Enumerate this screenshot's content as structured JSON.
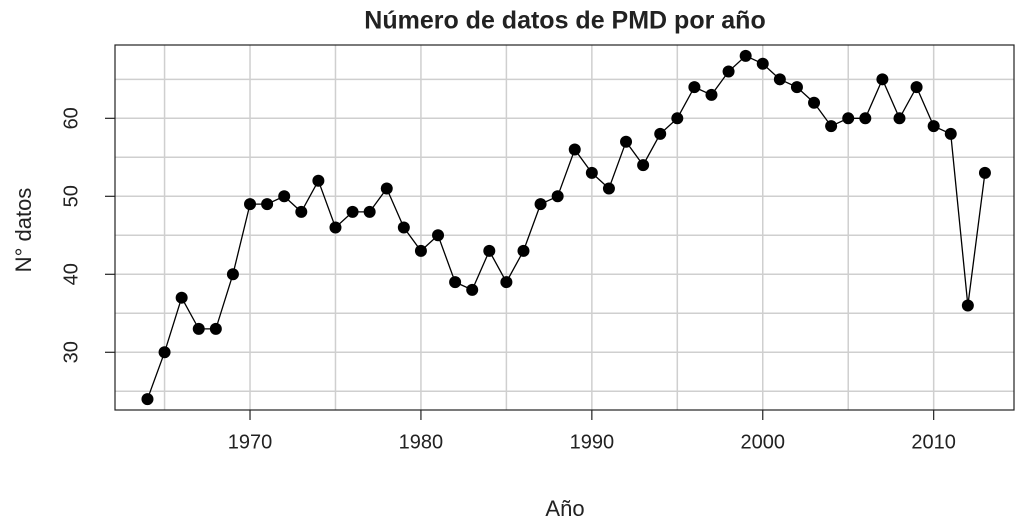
{
  "chart_data": {
    "type": "line",
    "title": "Número de datos de PMD por año",
    "xlabel": "Año",
    "ylabel": "N° datos",
    "x": [
      1964,
      1965,
      1966,
      1967,
      1968,
      1969,
      1970,
      1971,
      1972,
      1973,
      1974,
      1975,
      1976,
      1977,
      1978,
      1979,
      1980,
      1981,
      1982,
      1983,
      1984,
      1985,
      1986,
      1987,
      1988,
      1989,
      1990,
      1991,
      1992,
      1993,
      1994,
      1995,
      1996,
      1997,
      1998,
      1999,
      2000,
      2001,
      2002,
      2003,
      2004,
      2005,
      2006,
      2007,
      2008,
      2009,
      2010,
      2011,
      2012,
      2013
    ],
    "series": [
      {
        "name": "N° datos",
        "color": "#000000",
        "values": [
          24,
          30,
          37,
          33,
          33,
          40,
          49,
          49,
          50,
          48,
          52,
          46,
          48,
          48,
          51,
          46,
          43,
          45,
          39,
          38,
          43,
          39,
          43,
          49,
          50,
          56,
          53,
          51,
          57,
          54,
          58,
          60,
          64,
          63,
          66,
          68,
          67,
          65,
          64,
          62,
          59,
          60,
          60,
          65,
          60,
          64,
          59,
          58,
          36,
          53
        ]
      }
    ],
    "xlim": [
      1962.1,
      2014.7
    ],
    "ylim": [
      22.6,
      69.4
    ],
    "xticks": [
      1970,
      1980,
      1990,
      2000,
      2010
    ],
    "yticks": [
      30,
      40,
      50,
      60
    ],
    "xgrid": [
      1965,
      1970,
      1975,
      1980,
      1985,
      1990,
      1995,
      2000,
      2005,
      2010
    ],
    "ygrid": [
      25,
      30,
      35,
      40,
      45,
      50,
      55,
      60,
      65
    ],
    "grid": true
  }
}
